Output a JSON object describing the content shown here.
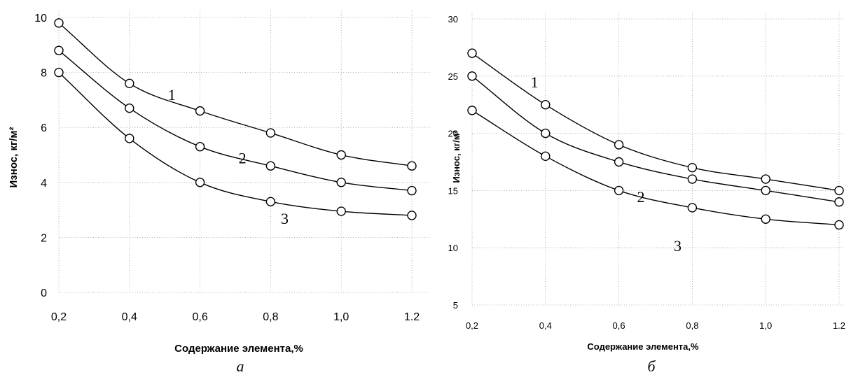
{
  "chart_data": [
    {
      "type": "line",
      "caption": "а",
      "xlabel": "Содержание элемента,%",
      "ylabel": "Износ, кг/м²",
      "x": [
        0.2,
        0.4,
        0.6,
        0.8,
        1.0,
        1.2
      ],
      "x_tick_labels": [
        "0,2",
        "0,4",
        "0,6",
        "0,8",
        "1,0",
        "1.2"
      ],
      "xlim": [
        0.2,
        1.2
      ],
      "ylim": [
        0,
        10
      ],
      "y_ticks": [
        0,
        2,
        4,
        6,
        8,
        10
      ],
      "y_tick_labels": [
        "0",
        "2",
        "4",
        "6",
        "8",
        "10"
      ],
      "grid": true,
      "series": [
        {
          "name": "1",
          "values": [
            9.8,
            7.6,
            6.6,
            5.8,
            5.0,
            4.6
          ]
        },
        {
          "name": "2",
          "values": [
            8.8,
            6.7,
            5.3,
            4.6,
            4.0,
            3.7
          ]
        },
        {
          "name": "3",
          "values": [
            8.0,
            5.6,
            4.0,
            3.3,
            2.95,
            2.8
          ]
        }
      ],
      "curve_labels": [
        {
          "text": "1",
          "x": 0.52,
          "y": 7.0
        },
        {
          "text": "2",
          "x": 0.72,
          "y": 4.7
        },
        {
          "text": "3",
          "x": 0.84,
          "y": 2.5
        }
      ]
    },
    {
      "type": "line",
      "caption": "б",
      "xlabel": "Содержание элемента,%",
      "ylabel": "Износ, кг/м²",
      "x": [
        0.2,
        0.4,
        0.6,
        0.8,
        1.0,
        1.2
      ],
      "x_tick_labels": [
        "0,2",
        "0,4",
        "0,6",
        "0,8",
        "1,0",
        "1.2"
      ],
      "xlim": [
        0.2,
        1.2
      ],
      "ylim": [
        5,
        30
      ],
      "y_ticks": [
        5,
        10,
        15,
        20,
        25,
        30
      ],
      "y_tick_labels": [
        "5",
        "10",
        "15",
        "20",
        "25",
        "30"
      ],
      "grid": true,
      "series": [
        {
          "name": "1",
          "values": [
            27.0,
            22.5,
            19.0,
            17.0,
            16.0,
            15.0
          ]
        },
        {
          "name": "2",
          "values": [
            25.0,
            20.0,
            17.5,
            16.0,
            15.0,
            14.0
          ]
        },
        {
          "name": "3",
          "values": [
            22.0,
            18.0,
            15.0,
            13.5,
            12.5,
            12.0
          ]
        }
      ],
      "curve_labels": [
        {
          "text": "1",
          "x": 0.37,
          "y": 24.0
        },
        {
          "text": "2",
          "x": 0.66,
          "y": 14.0
        },
        {
          "text": "3",
          "x": 0.76,
          "y": 9.7
        }
      ]
    }
  ]
}
